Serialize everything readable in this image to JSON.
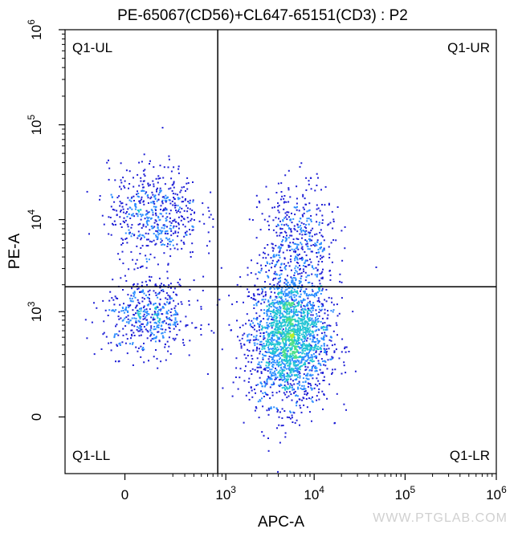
{
  "chart_data": {
    "type": "scatter",
    "title": "PE-65067(CD56)+CL647-65151(CD3) : P2",
    "xlabel": "APC-A",
    "ylabel": "PE-A",
    "x_scale": "biexponential",
    "y_scale": "biexponential",
    "xlim": [
      -300,
      1000000
    ],
    "ylim": [
      -250,
      1000000
    ],
    "x_ticks": [
      {
        "value": 0,
        "base": "0",
        "exp": ""
      },
      {
        "value": 1000,
        "base": "10",
        "exp": "3"
      },
      {
        "value": 10000,
        "base": "10",
        "exp": "4"
      },
      {
        "value": 100000,
        "base": "10",
        "exp": "5"
      },
      {
        "value": 1000000,
        "base": "10",
        "exp": "6"
      }
    ],
    "y_ticks": [
      {
        "value": 0,
        "base": "0",
        "exp": ""
      },
      {
        "value": 1000,
        "base": "10",
        "exp": "3"
      },
      {
        "value": 10000,
        "base": "10",
        "exp": "4"
      },
      {
        "value": 100000,
        "base": "10",
        "exp": "5"
      },
      {
        "value": 1000000,
        "base": "10",
        "exp": "6"
      }
    ],
    "gates": {
      "x_threshold": 800,
      "y_threshold": 1900
    },
    "quadrants": {
      "upper_left": "Q1-UL",
      "upper_right": "Q1-UR",
      "lower_left": "Q1-LL",
      "lower_right": "Q1-LR"
    },
    "density_colors": [
      "#1f1fd6",
      "#2a8cff",
      "#21c4d4",
      "#4ee08a",
      "#b6f02a"
    ],
    "populations": [
      {
        "name": "",
        "x_center": 5200,
        "y_center": 500,
        "x_spread_decades": 0.22,
        "y_spread_decades": 0.35,
        "count": 2200
      },
      {
        "name": "",
        "x_center": 90,
        "y_center": 12000,
        "x_spread_decades": 0.25,
        "y_spread_decades": 0.25,
        "count": 550
      },
      {
        "name": "",
        "x_center": 70,
        "y_center": 900,
        "x_spread_decades": 0.25,
        "y_spread_decades": 0.2,
        "count": 500
      },
      {
        "name": "",
        "x_center": 6500,
        "y_center": 6000,
        "x_spread_decades": 0.2,
        "y_spread_decades": 0.3,
        "count": 450
      }
    ]
  },
  "watermark": "WWW.PTGLAB.COM"
}
